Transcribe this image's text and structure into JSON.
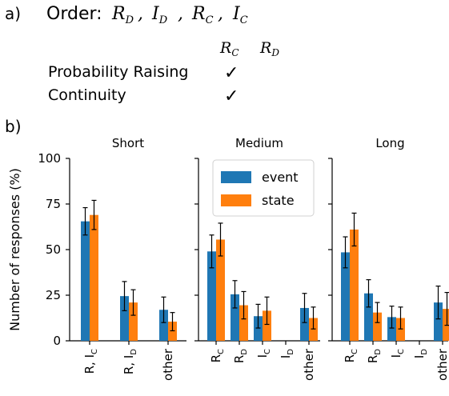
{
  "panel_a": {
    "label": "a)",
    "order_prefix": "Order:",
    "order_items": [
      {
        "base": "R",
        "sub": "D"
      },
      {
        "base": "I",
        "sub": "D"
      },
      {
        "base": "R",
        "sub": "C"
      },
      {
        "base": "I",
        "sub": "C"
      }
    ],
    "columns": [
      {
        "base": "R",
        "sub": "C"
      },
      {
        "base": "R",
        "sub": "D"
      }
    ],
    "rows": [
      {
        "label": "Probability Raising",
        "marks": [
          "✓",
          ""
        ]
      },
      {
        "label": "Continuity",
        "marks": [
          "✓",
          ""
        ]
      }
    ]
  },
  "panel_b": {
    "label": "b)"
  },
  "chart_data": {
    "type": "bar",
    "ylabel": "Number of responses (%)",
    "ylim": [
      0,
      100
    ],
    "yticks": [
      0,
      25,
      50,
      75,
      100
    ],
    "legend": {
      "location": "top-right",
      "entries": [
        "event",
        "state"
      ]
    },
    "colors": {
      "event": "#1f77b4",
      "state": "#ff7f0e"
    },
    "panels": [
      {
        "title": "Short",
        "categories": [
          {
            "base": "R, I",
            "sub": "C"
          },
          {
            "base": "R, I",
            "sub": "D"
          },
          {
            "base": "other",
            "sub": ""
          }
        ],
        "series": [
          {
            "name": "event",
            "values": [
              65.5,
              24.5,
              17
            ],
            "err_low": [
              7.5,
              8,
              7
            ],
            "err_high": [
              7.5,
              8,
              7
            ]
          },
          {
            "name": "state",
            "values": [
              69,
              21,
              10.5
            ],
            "err_low": [
              8,
              7,
              5
            ],
            "err_high": [
              8,
              7,
              5
            ]
          }
        ]
      },
      {
        "title": "Medium",
        "categories": [
          {
            "base": "R",
            "sub": "C"
          },
          {
            "base": "R",
            "sub": "D"
          },
          {
            "base": "I",
            "sub": "C"
          },
          {
            "base": "I",
            "sub": "D"
          },
          {
            "base": "other",
            "sub": ""
          }
        ],
        "series": [
          {
            "name": "event",
            "values": [
              49,
              25.5,
              13.5,
              0,
              18
            ],
            "err_low": [
              9,
              7.5,
              6.5,
              0,
              8
            ],
            "err_high": [
              9,
              7.5,
              6.5,
              0,
              8
            ]
          },
          {
            "name": "state",
            "values": [
              55.5,
              19.5,
              16.5,
              0,
              12.5
            ],
            "err_low": [
              9,
              7.5,
              7.5,
              0,
              6
            ],
            "err_high": [
              9,
              7.5,
              7.5,
              0,
              6
            ]
          }
        ]
      },
      {
        "title": "Long",
        "categories": [
          {
            "base": "R",
            "sub": "C"
          },
          {
            "base": "R",
            "sub": "D"
          },
          {
            "base": "I",
            "sub": "C"
          },
          {
            "base": "I",
            "sub": "D"
          },
          {
            "base": "other",
            "sub": ""
          }
        ],
        "series": [
          {
            "name": "event",
            "values": [
              48.5,
              26,
              13,
              0,
              21
            ],
            "err_low": [
              8.5,
              7.5,
              6,
              0,
              9
            ],
            "err_high": [
              8.5,
              7.5,
              6,
              0,
              9
            ]
          },
          {
            "name": "state",
            "values": [
              61,
              15.5,
              12.5,
              0,
              17.5
            ],
            "err_low": [
              9,
              5.5,
              6,
              0,
              9
            ],
            "err_high": [
              9,
              5.5,
              6,
              0,
              9
            ]
          }
        ]
      }
    ]
  }
}
